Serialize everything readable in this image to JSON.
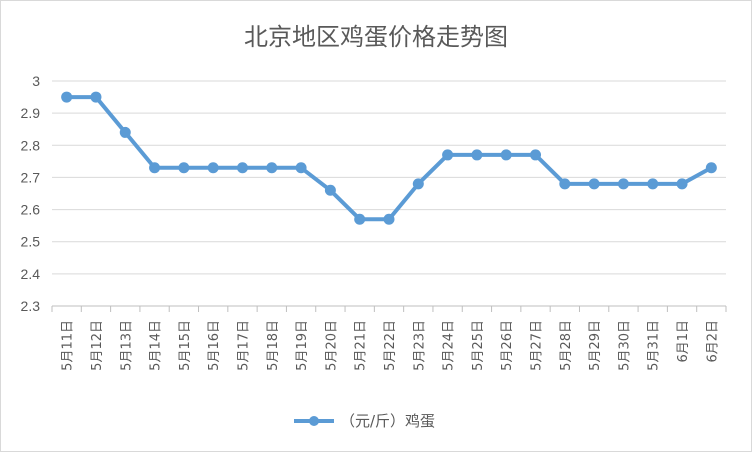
{
  "chart_data": {
    "type": "line",
    "title": "北京地区鸡蛋价格走势图",
    "categories": [
      "5月11日",
      "5月12日",
      "5月13日",
      "5月14日",
      "5月15日",
      "5月16日",
      "5月17日",
      "5月18日",
      "5月19日",
      "5月20日",
      "5月21日",
      "5月22日",
      "5月23日",
      "5月24日",
      "5月25日",
      "5月26日",
      "5月27日",
      "5月28日",
      "5月29日",
      "5月30日",
      "5月31日",
      "6月1日",
      "6月2日"
    ],
    "series": [
      {
        "name": "（元/斤）鸡蛋",
        "values": [
          2.95,
          2.95,
          2.84,
          2.73,
          2.73,
          2.73,
          2.73,
          2.73,
          2.73,
          2.66,
          2.57,
          2.57,
          2.68,
          2.77,
          2.77,
          2.77,
          2.77,
          2.68,
          2.68,
          2.68,
          2.68,
          2.68,
          2.73
        ],
        "color": "#5b9bd5"
      }
    ],
    "ylim": [
      2.3,
      3.0
    ],
    "yticks": [
      "2.3",
      "2.4",
      "2.5",
      "2.6",
      "2.7",
      "2.8",
      "2.9",
      "3"
    ],
    "grid": true,
    "legend_position": "bottom"
  }
}
